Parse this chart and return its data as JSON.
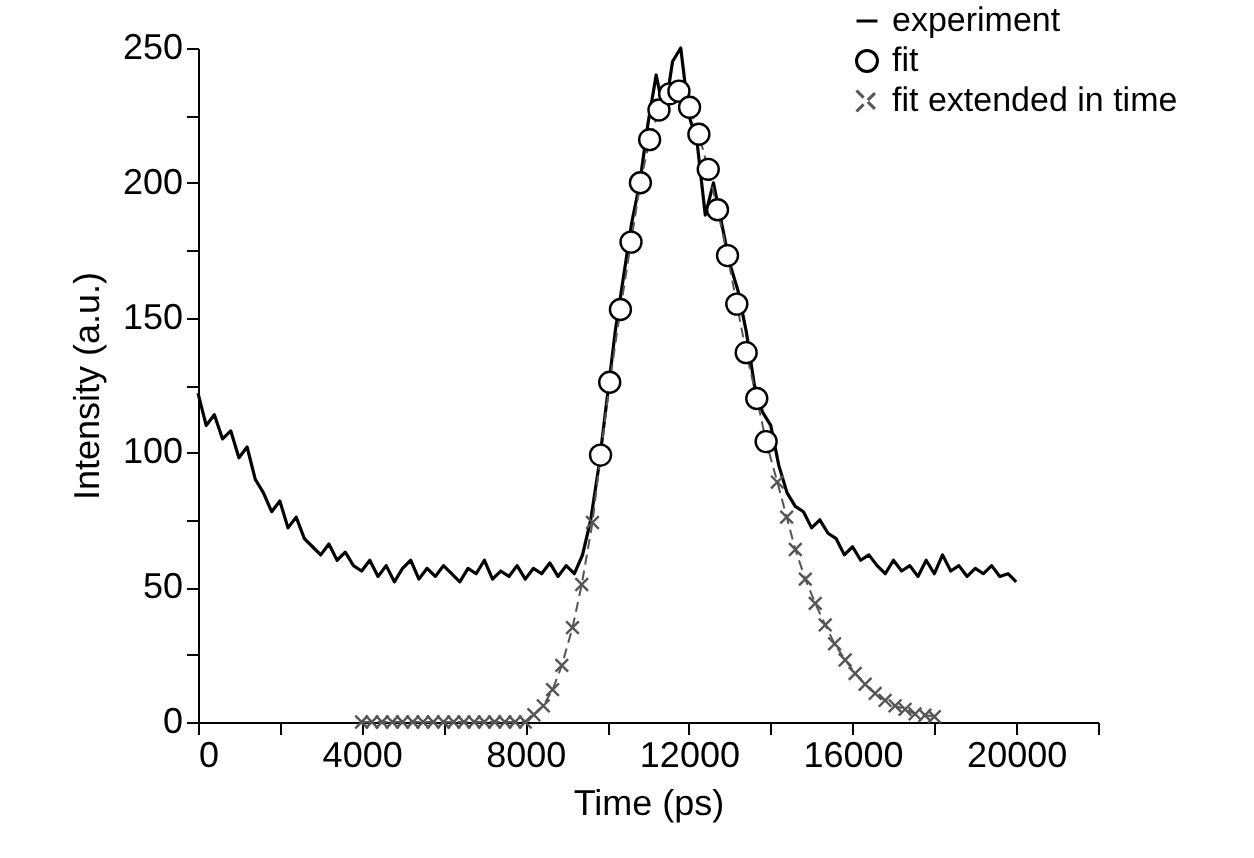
{
  "chart_data": {
    "type": "line",
    "xlabel": "Time (ps)",
    "ylabel": "Intensity (a.u.)",
    "xlim": [
      0,
      22000
    ],
    "ylim": [
      0,
      250
    ],
    "xticks": [
      0,
      {
        "value": 2000,
        "label": null
      },
      4000,
      {
        "value": 6000,
        "label": null
      },
      8000,
      {
        "value": 10000,
        "label": null
      },
      12000,
      {
        "value": 14000,
        "label": null
      },
      16000,
      {
        "value": 18000,
        "label": null
      },
      20000,
      {
        "value": 22000,
        "label": null
      }
    ],
    "yticks": [
      0,
      {
        "value": 25,
        "label": null
      },
      50,
      {
        "value": 75,
        "label": null
      },
      100,
      {
        "value": 125,
        "label": null
      },
      150,
      {
        "value": 175,
        "label": null
      },
      200,
      {
        "value": 225,
        "label": null
      },
      250
    ],
    "grid": false,
    "legend": "top right",
    "series": [
      {
        "name": "experiment",
        "type": "line",
        "color": "#000000",
        "marker": "none",
        "line_style": "solid",
        "x": [
          0,
          200,
          400,
          600,
          800,
          1000,
          1200,
          1400,
          1600,
          1800,
          2000,
          2200,
          2400,
          2600,
          2800,
          3000,
          3200,
          3400,
          3600,
          3800,
          4000,
          4200,
          4400,
          4600,
          4800,
          5000,
          5200,
          5400,
          5600,
          5800,
          6000,
          6200,
          6400,
          6600,
          6800,
          7000,
          7200,
          7400,
          7600,
          7800,
          8000,
          8200,
          8400,
          8600,
          8800,
          9000,
          9200,
          9400,
          9600,
          9800,
          10000,
          10200,
          10400,
          10600,
          10800,
          11000,
          11200,
          11400,
          11600,
          11800,
          12000,
          12200,
          12400,
          12600,
          12800,
          13000,
          13200,
          13400,
          13600,
          13800,
          14000,
          14200,
          14400,
          14600,
          14800,
          15000,
          15200,
          15400,
          15600,
          15800,
          16000,
          16200,
          16400,
          16600,
          16800,
          17000,
          17200,
          17400,
          17600,
          17800,
          18000,
          18200,
          18400,
          18600,
          18800,
          19000,
          19200,
          19400,
          19600,
          19800,
          20000
        ],
        "values": [
          122,
          110,
          114,
          105,
          108,
          98,
          102,
          90,
          85,
          78,
          82,
          72,
          76,
          68,
          65,
          62,
          66,
          60,
          63,
          58,
          56,
          60,
          54,
          58,
          52,
          57,
          60,
          53,
          57,
          54,
          58,
          55,
          52,
          57,
          55,
          60,
          53,
          56,
          54,
          58,
          53,
          57,
          55,
          59,
          54,
          58,
          55,
          62,
          75,
          95,
          120,
          145,
          165,
          185,
          200,
          222,
          240,
          225,
          245,
          250,
          225,
          215,
          188,
          200,
          185,
          170,
          160,
          145,
          125,
          115,
          110,
          95,
          85,
          80,
          78,
          72,
          75,
          70,
          68,
          62,
          65,
          60,
          62,
          58,
          55,
          60,
          56,
          58,
          54,
          60,
          55,
          62,
          56,
          58,
          54,
          57,
          55,
          58,
          54,
          55,
          52
        ]
      },
      {
        "name": "fit",
        "type": "scatter",
        "color": "#000000",
        "marker": "circle",
        "x": [
          9840,
          10064,
          10326,
          10585,
          10814,
          11040,
          11268,
          11528,
          11756,
          12016,
          12244,
          12473,
          12700,
          12944,
          13171,
          13400,
          13659,
          13888
        ],
        "values": [
          99,
          126,
          153,
          178,
          200,
          216,
          227,
          233,
          234,
          228,
          218,
          205,
          190,
          173,
          155,
          137,
          120,
          104
        ]
      },
      {
        "name": "fit extended in time",
        "type": "line",
        "color": "#555555",
        "marker": "cross",
        "line_style": "dashed",
        "x": [
          4000,
          4250,
          4500,
          4750,
          5000,
          5250,
          5500,
          5750,
          6000,
          6250,
          6500,
          6750,
          7000,
          7250,
          7500,
          7750,
          8000,
          8210,
          8440,
          8668,
          8893,
          9155,
          9380,
          9643,
          9840,
          10064,
          10326,
          10585,
          10814,
          11040,
          11268,
          11528,
          11756,
          12016,
          12244,
          12473,
          12700,
          12944,
          13171,
          13400,
          13659,
          13888,
          14161,
          14390,
          14601,
          14845,
          15088,
          15332,
          15561,
          15820,
          16064,
          16308,
          16552,
          16796,
          17040,
          17284,
          17528,
          17771,
          18000
        ],
        "values": [
          0,
          0,
          0,
          0,
          0,
          0,
          0,
          0,
          0,
          0,
          0,
          0,
          0,
          0,
          0,
          0,
          0,
          2.7,
          6,
          12,
          21,
          35,
          51,
          74,
          99,
          126,
          153,
          178,
          200,
          216,
          227,
          233,
          234,
          228,
          218,
          205,
          190,
          173,
          155,
          137,
          120,
          104,
          89,
          76,
          64,
          53,
          44,
          36,
          29,
          23,
          18,
          14,
          10.6,
          8,
          6,
          4.7,
          3,
          2.5,
          2
        ]
      }
    ]
  }
}
